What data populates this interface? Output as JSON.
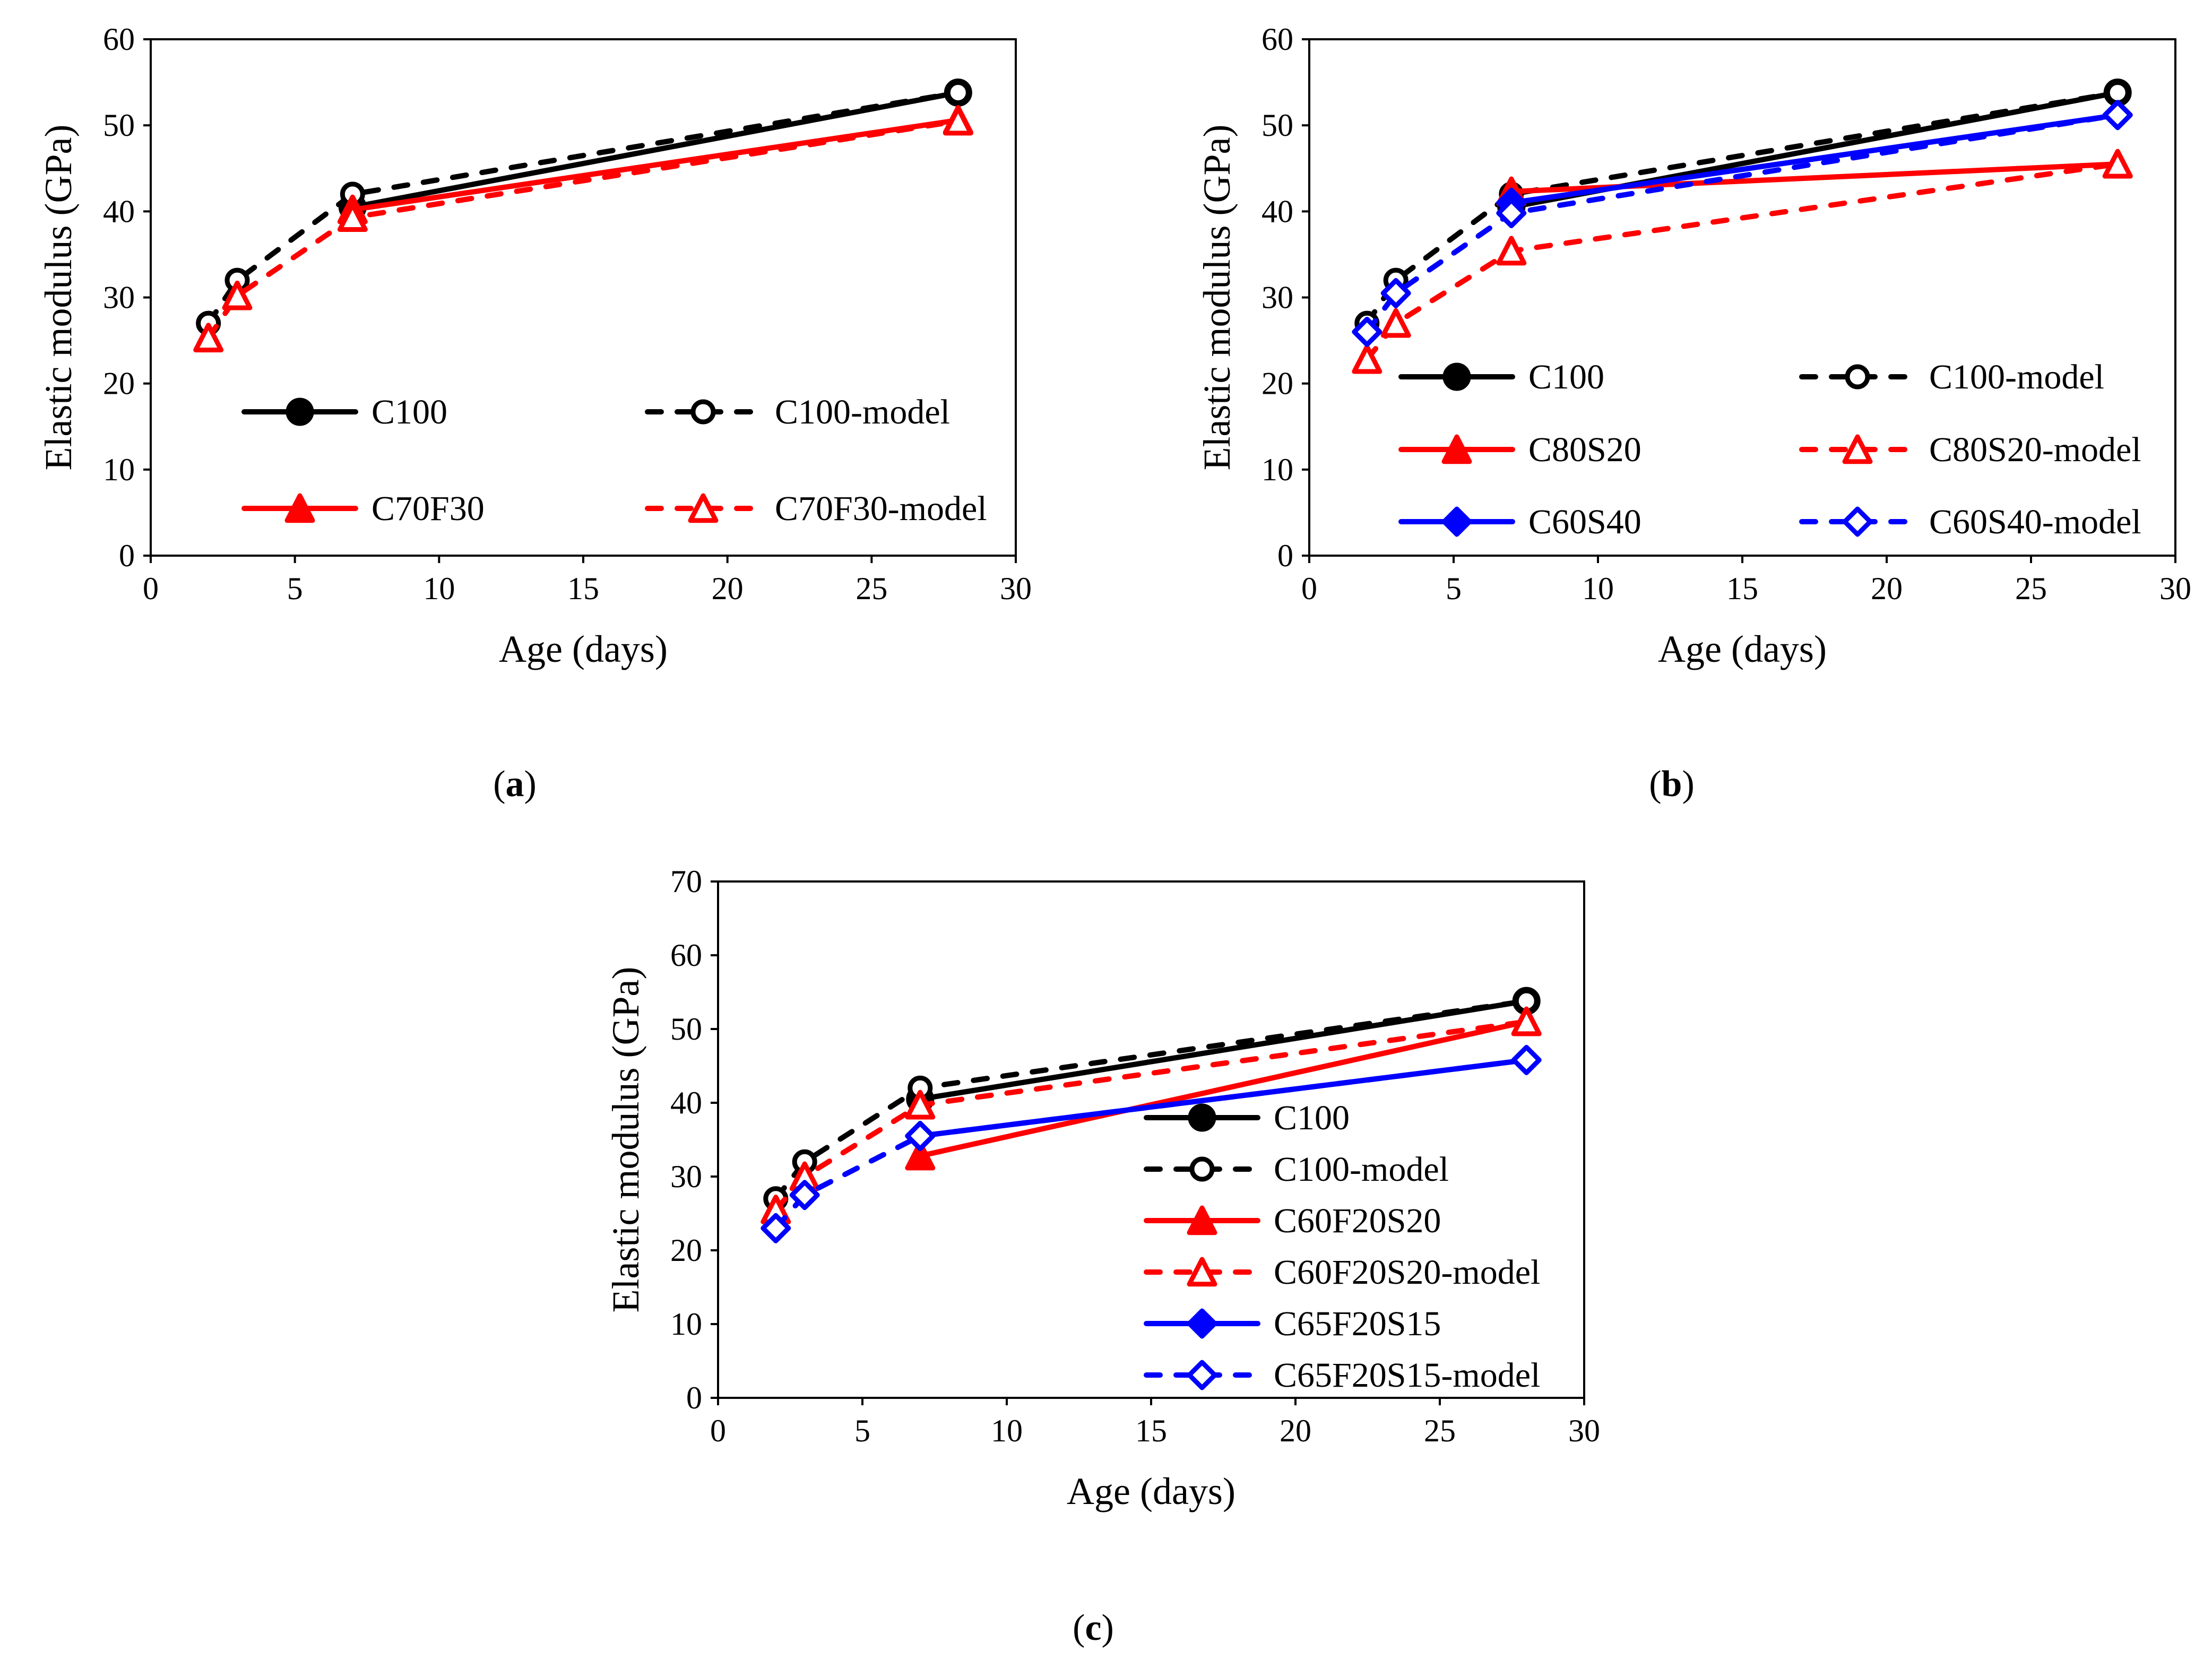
{
  "chart_data": [
    {
      "type": "line",
      "panel": "a",
      "caption_letter": "a",
      "xlabel": "Age (days)",
      "ylabel": "Elastic modulus (GPa)",
      "xlim": [
        0,
        30
      ],
      "ylim": [
        0,
        60
      ],
      "xticks": [
        0,
        5,
        10,
        15,
        20,
        25,
        30
      ],
      "yticks": [
        0,
        10,
        20,
        30,
        40,
        50,
        60
      ],
      "grid": false,
      "legend": "inside-lower-two-columns",
      "series": [
        {
          "name": "C100",
          "color": "#000000",
          "dash": false,
          "marker": "circle",
          "filled": true,
          "x": [
            7,
            28
          ],
          "y": [
            40.5,
            53.8
          ]
        },
        {
          "name": "C100-model",
          "color": "#000000",
          "dash": true,
          "marker": "circle",
          "filled": false,
          "x": [
            2,
            3,
            7,
            28
          ],
          "y": [
            27,
            32,
            42,
            53.8
          ]
        },
        {
          "name": "C70F30",
          "color": "#ff0000",
          "dash": false,
          "marker": "triangle",
          "filled": true,
          "x": [
            7,
            28
          ],
          "y": [
            40.2,
            50.6
          ]
        },
        {
          "name": "C70F30-model",
          "color": "#ff0000",
          "dash": true,
          "marker": "triangle",
          "filled": false,
          "x": [
            2,
            3,
            7,
            28
          ],
          "y": [
            25.3,
            30.2,
            39.3,
            50.5
          ]
        }
      ]
    },
    {
      "type": "line",
      "panel": "b",
      "caption_letter": "b",
      "xlabel": "Age (days)",
      "ylabel": "Elastic modulus (GPa)",
      "xlim": [
        0,
        30
      ],
      "ylim": [
        0,
        60
      ],
      "xticks": [
        0,
        5,
        10,
        15,
        20,
        25,
        30
      ],
      "yticks": [
        0,
        10,
        20,
        30,
        40,
        50,
        60
      ],
      "grid": false,
      "legend": "inside-lower-two-columns",
      "series": [
        {
          "name": "C100",
          "color": "#000000",
          "dash": false,
          "marker": "circle",
          "filled": true,
          "x": [
            7,
            28
          ],
          "y": [
            40.5,
            53.8
          ]
        },
        {
          "name": "C100-model",
          "color": "#000000",
          "dash": true,
          "marker": "circle",
          "filled": false,
          "x": [
            2,
            3,
            7,
            28
          ],
          "y": [
            27,
            32,
            42,
            53.8
          ]
        },
        {
          "name": "C80S20",
          "color": "#ff0000",
          "dash": false,
          "marker": "triangle",
          "filled": true,
          "x": [
            7,
            28
          ],
          "y": [
            42.3,
            45.5
          ]
        },
        {
          "name": "C80S20-model",
          "color": "#ff0000",
          "dash": true,
          "marker": "triangle",
          "filled": false,
          "x": [
            2,
            3,
            7,
            28
          ],
          "y": [
            22.8,
            27,
            35.4,
            45.5
          ]
        },
        {
          "name": "C60S40",
          "color": "#0000ff",
          "dash": false,
          "marker": "diamond",
          "filled": true,
          "x": [
            7,
            28
          ],
          "y": [
            41,
            51.2
          ]
        },
        {
          "name": "C60S40-model",
          "color": "#0000ff",
          "dash": true,
          "marker": "diamond",
          "filled": false,
          "x": [
            2,
            3,
            7,
            28
          ],
          "y": [
            26,
            30.5,
            39.8,
            51.2
          ]
        }
      ]
    },
    {
      "type": "line",
      "panel": "c",
      "caption_letter": "c",
      "xlabel": "Age (days)",
      "ylabel": "Elastic modulus (GPa)",
      "xlim": [
        0,
        30
      ],
      "ylim": [
        0,
        70
      ],
      "xticks": [
        0,
        5,
        10,
        15,
        20,
        25,
        30
      ],
      "yticks": [
        0,
        10,
        20,
        30,
        40,
        50,
        60,
        70
      ],
      "grid": false,
      "legend": "inside-right-single-column",
      "series": [
        {
          "name": "C100",
          "color": "#000000",
          "dash": false,
          "marker": "circle",
          "filled": true,
          "x": [
            7,
            28
          ],
          "y": [
            40.5,
            53.8
          ]
        },
        {
          "name": "C100-model",
          "color": "#000000",
          "dash": true,
          "marker": "circle",
          "filled": false,
          "x": [
            2,
            3,
            7,
            28
          ],
          "y": [
            27,
            32,
            42,
            53.8
          ]
        },
        {
          "name": "C60F20S20",
          "color": "#ff0000",
          "dash": false,
          "marker": "triangle",
          "filled": true,
          "x": [
            7,
            28
          ],
          "y": [
            32.8,
            51
          ]
        },
        {
          "name": "C60F20S20-model",
          "color": "#ff0000",
          "dash": true,
          "marker": "triangle",
          "filled": false,
          "x": [
            2,
            3,
            7,
            28
          ],
          "y": [
            25.5,
            30,
            39.7,
            51
          ]
        },
        {
          "name": "C65F20S15",
          "color": "#0000ff",
          "dash": false,
          "marker": "diamond",
          "filled": true,
          "x": [
            7,
            28
          ],
          "y": [
            35.5,
            45.8
          ]
        },
        {
          "name": "C65F20S15-model",
          "color": "#0000ff",
          "dash": true,
          "marker": "diamond",
          "filled": false,
          "x": [
            2,
            3,
            7,
            28
          ],
          "y": [
            23,
            27.5,
            35.5,
            45.8
          ]
        }
      ]
    }
  ]
}
